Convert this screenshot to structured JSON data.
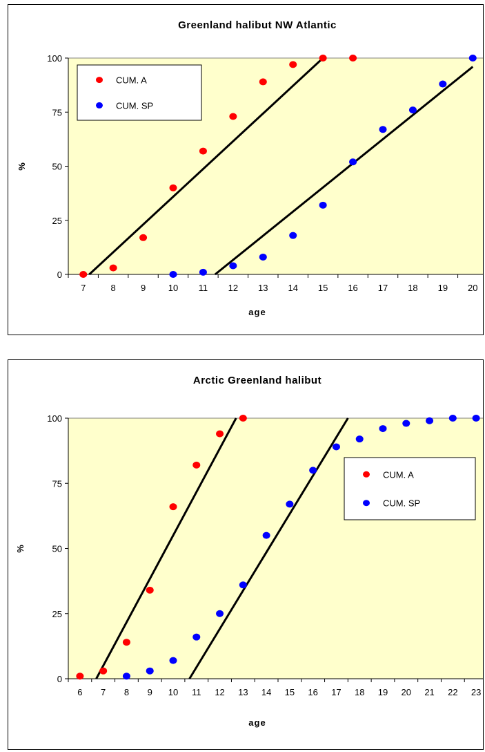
{
  "chart_data": [
    {
      "type": "scatter",
      "title": "Greenland halibut NW Atlantic",
      "xlabel": "age",
      "ylabel": "%",
      "categories": [
        "7",
        "8",
        "9",
        "10",
        "11",
        "12",
        "13",
        "14",
        "15",
        "16",
        "17",
        "18",
        "19",
        "20"
      ],
      "ylim": [
        0,
        100
      ],
      "yticks": [
        0,
        25,
        50,
        75,
        100
      ],
      "legend_position": "top-left",
      "background": "#ffffcc",
      "series": [
        {
          "name": "CUM. A",
          "color": "#ff0000",
          "x": [
            7,
            8,
            9,
            10,
            11,
            12,
            13,
            14,
            15,
            16
          ],
          "y": [
            0,
            3,
            17,
            40,
            57,
            73,
            89,
            97,
            100,
            100
          ]
        },
        {
          "name": "CUM. SP",
          "color": "#0000ff",
          "x": [
            10,
            11,
            12,
            13,
            14,
            15,
            16,
            17,
            18,
            19,
            20
          ],
          "y": [
            0,
            1,
            4,
            8,
            18,
            32,
            52,
            67,
            76,
            88,
            100
          ]
        }
      ],
      "fit_lines": [
        {
          "x": [
            7.2,
            15.0
          ],
          "y": [
            0,
            100
          ]
        },
        {
          "x": [
            11.4,
            20.0
          ],
          "y": [
            0,
            96
          ]
        }
      ]
    },
    {
      "type": "scatter",
      "title": "Arctic Greenland halibut",
      "xlabel": "age",
      "ylabel": "%",
      "categories": [
        "6",
        "7",
        "8",
        "9",
        "10",
        "11",
        "12",
        "13",
        "14",
        "15",
        "16",
        "17",
        "18",
        "19",
        "20",
        "21",
        "22",
        "23"
      ],
      "ylim": [
        0,
        100
      ],
      "yticks": [
        0,
        25,
        50,
        75,
        100
      ],
      "legend_position": "top-right",
      "background": "#ffffcc",
      "series": [
        {
          "name": "CUM. A",
          "color": "#ff0000",
          "x": [
            6,
            7,
            8,
            9,
            10,
            11,
            12,
            13
          ],
          "y": [
            1,
            3,
            14,
            34,
            66,
            82,
            94,
            100
          ]
        },
        {
          "name": "CUM. SP",
          "color": "#0000ff",
          "x": [
            8,
            9,
            10,
            11,
            12,
            13,
            14,
            15,
            16,
            17,
            18,
            19,
            20,
            21,
            22,
            23
          ],
          "y": [
            1,
            3,
            7,
            16,
            25,
            36,
            55,
            67,
            80,
            89,
            92,
            96,
            98,
            99,
            100,
            100
          ]
        }
      ],
      "fit_lines": [
        {
          "x": [
            6.7,
            12.7
          ],
          "y": [
            0,
            100
          ]
        },
        {
          "x": [
            10.7,
            17.5
          ],
          "y": [
            0,
            100
          ]
        }
      ]
    }
  ]
}
